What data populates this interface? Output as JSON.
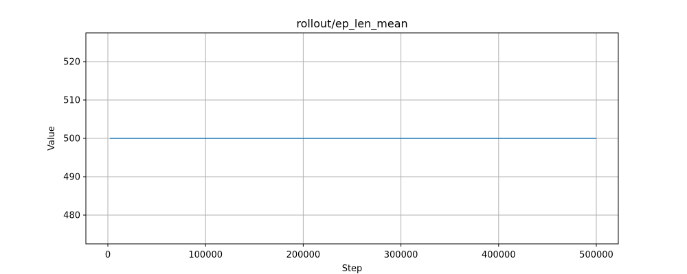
{
  "chart_data": {
    "type": "line",
    "title": "rollout/ep_len_mean",
    "xlabel": "Step",
    "ylabel": "Value",
    "xlim": [
      -22500,
      522500
    ],
    "ylim": [
      472.5,
      527.5
    ],
    "xticks": [
      0,
      100000,
      200000,
      300000,
      400000,
      500000
    ],
    "yticks": [
      480,
      490,
      500,
      510,
      520
    ],
    "grid": true,
    "series": [
      {
        "color": "#1f77b4",
        "x": [
          2048,
          100000,
          200000,
          300000,
          400000,
          500000
        ],
        "y": [
          500,
          500,
          500,
          500,
          500,
          500
        ]
      }
    ]
  }
}
